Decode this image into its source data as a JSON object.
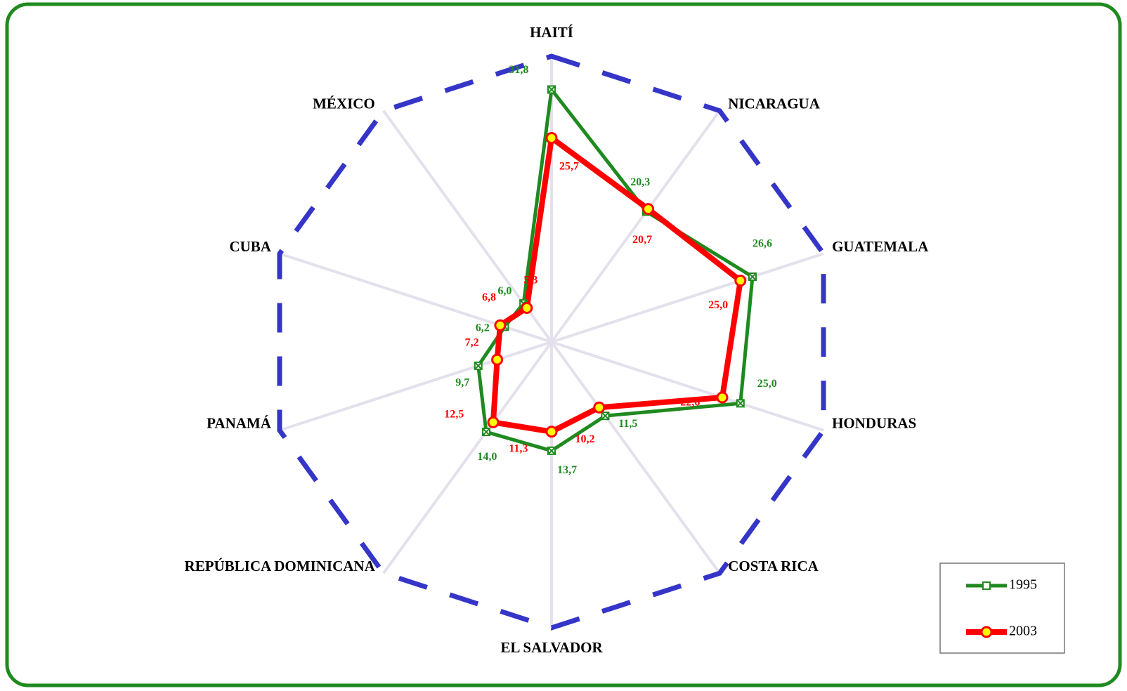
{
  "chart_data": {
    "type": "radar",
    "categories": [
      "HAITÍ",
      "NICARAGUA",
      "GUATEMALA",
      "HONDURAS",
      "COSTA RICA",
      "EL SALVADOR",
      "REPÚBLICA DOMINICANA",
      "PANAMÁ",
      "CUBA",
      "MÉXICO"
    ],
    "series": [
      {
        "name": "1995",
        "color": "#1f8a1f",
        "marker_color": "#ffffff",
        "values": [
          31.8,
          20.3,
          26.6,
          25.0,
          11.5,
          13.7,
          14.0,
          9.7,
          6.2,
          6.0
        ],
        "value_labels": [
          "31,8",
          "20,3",
          "26,6",
          "25,0",
          "11,5",
          "13,7",
          "14,0",
          "9,7",
          "6,2",
          "6,0"
        ]
      },
      {
        "name": "2003",
        "color": "#ff0000",
        "marker_color": "#ffff00",
        "values": [
          25.7,
          20.7,
          25.0,
          22.6,
          10.2,
          11.3,
          12.5,
          7.2,
          6.8,
          5.3
        ],
        "value_labels": [
          "25,7",
          "20,7",
          "25,0",
          "22,6",
          "10,2",
          "11,3",
          "12,5",
          "7,2",
          "6,8",
          "5,3"
        ]
      }
    ],
    "ylim": [
      0,
      36
    ],
    "outline_color": "#3535c8",
    "legend": "lower right"
  }
}
